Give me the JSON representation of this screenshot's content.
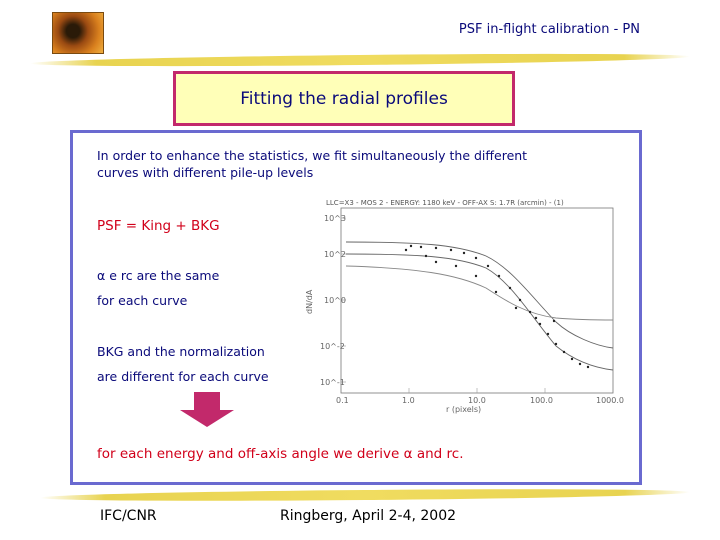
{
  "header": {
    "title": "PSF in-flight calibration - PN"
  },
  "slide": {
    "title": "Fitting the radial profiles",
    "intro_line1": "In order to enhance the statistics, we fit simultaneously the different",
    "intro_line2": "curves with different pile-up levels",
    "model": "PSF = King + BKG",
    "param_line1": "α e rc are the same",
    "param_line2": "for each curve",
    "bkg_line1": "BKG and the normalization",
    "bkg_line2": "are different for each curve",
    "conclusion": "for each energy and off-axis angle we derive α and rc."
  },
  "plot": {
    "header": "LLC=X3 - MOS 2 - ENERGY: 1180 keV - OFF-AX S: 1.7R (arcmin) - (1)",
    "ylabel": "dN/dA",
    "xlabel": "r (pixels)",
    "yticks": [
      "10^3",
      "10^2",
      "10^0",
      "10^-2",
      "10^-1"
    ],
    "xticks": [
      "0.1",
      "1.0",
      "10.0",
      "100.0",
      "1000.0"
    ]
  },
  "footer": {
    "left": "IFC/CNR",
    "center": "Ringberg, April 2-4, 2002"
  },
  "colors": {
    "title_border": "#c2296b",
    "title_fill": "#ffffb8",
    "box_border": "#6a6ad0",
    "text": "#0a0a7a",
    "red": "#d1001a",
    "arrow": "#c2296b"
  }
}
